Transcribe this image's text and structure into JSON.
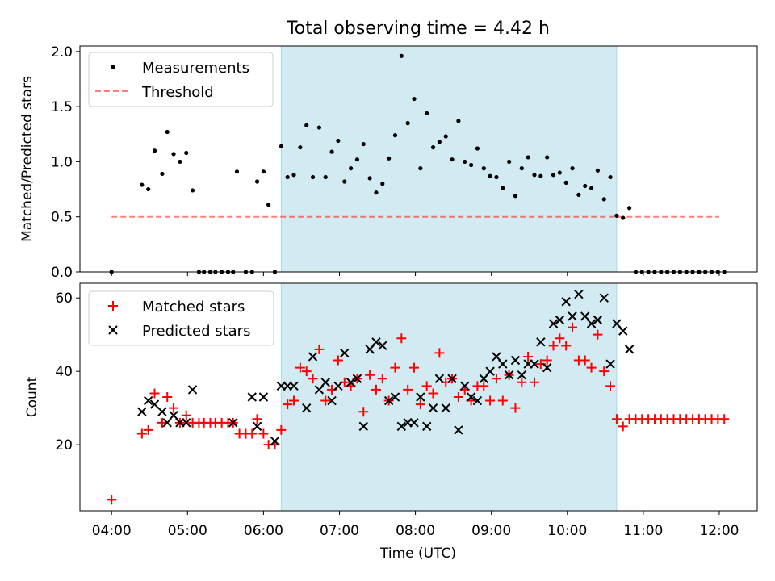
{
  "title": "Total observing time = 4.42 h",
  "colors": {
    "shade": "#add8e6",
    "measurement": "#000000",
    "threshold": "#ff0000",
    "matched": "#ff0000",
    "predicted": "#000000"
  },
  "chart_data": [
    {
      "type": "scatter",
      "ylabel": "Matched/Predicted stars",
      "ylim": [
        0,
        2.05
      ],
      "yticks": [
        0.0,
        0.5,
        1.0,
        1.5,
        2.0
      ],
      "ytick_labels": [
        "0.0",
        "0.5",
        "1.0",
        "1.5",
        "2.0"
      ],
      "shaded_span": [
        "06:14",
        "10:39"
      ],
      "legend": {
        "placement": "upper-left",
        "entries": [
          "Measurements",
          "Threshold"
        ]
      },
      "threshold": {
        "name": "Threshold",
        "y": 0.5,
        "x_range": [
          "04:00",
          "12:00"
        ],
        "style": "dashed"
      },
      "series": [
        {
          "name": "Measurements",
          "marker": "dot",
          "points": [
            [
              "04:00",
              0
            ],
            [
              "04:24",
              0.79
            ],
            [
              "04:29",
              0.75
            ],
            [
              "04:34",
              1.1
            ],
            [
              "04:40",
              0.89
            ],
            [
              "04:44",
              1.27
            ],
            [
              "04:49",
              1.07
            ],
            [
              "04:54",
              1.0
            ],
            [
              "04:59",
              1.08
            ],
            [
              "05:04",
              0.74
            ],
            [
              "05:09",
              0
            ],
            [
              "05:13",
              0
            ],
            [
              "05:18",
              0
            ],
            [
              "05:22",
              0
            ],
            [
              "05:27",
              0
            ],
            [
              "05:32",
              0
            ],
            [
              "05:36",
              0
            ],
            [
              "05:39",
              0.91
            ],
            [
              "05:46",
              0
            ],
            [
              "05:51",
              0
            ],
            [
              "05:55",
              0.82
            ],
            [
              "06:00",
              0.91
            ],
            [
              "06:04",
              0.61
            ],
            [
              "06:09",
              0
            ],
            [
              "06:14",
              1.14
            ],
            [
              "06:19",
              0.86
            ],
            [
              "06:24",
              0.88
            ],
            [
              "06:29",
              1.13
            ],
            [
              "06:34",
              1.33
            ],
            [
              "06:39",
              0.86
            ],
            [
              "06:44",
              1.31
            ],
            [
              "06:49",
              0.86
            ],
            [
              "06:54",
              1.09
            ],
            [
              "06:59",
              1.19
            ],
            [
              "07:04",
              0.82
            ],
            [
              "07:09",
              0.94
            ],
            [
              "07:14",
              1.02
            ],
            [
              "07:19",
              1.16
            ],
            [
              "07:24",
              0.85
            ],
            [
              "07:29",
              0.72
            ],
            [
              "07:34",
              0.8
            ],
            [
              "07:39",
              1.03
            ],
            [
              "07:44",
              1.24
            ],
            [
              "07:49",
              1.96
            ],
            [
              "07:54",
              1.35
            ],
            [
              "07:59",
              1.57
            ],
            [
              "08:04",
              0.94
            ],
            [
              "08:09",
              1.44
            ],
            [
              "08:14",
              1.13
            ],
            [
              "08:19",
              1.18
            ],
            [
              "08:24",
              1.23
            ],
            [
              "08:29",
              1.02
            ],
            [
              "08:34",
              1.37
            ],
            [
              "08:39",
              1.0
            ],
            [
              "08:44",
              0.97
            ],
            [
              "08:49",
              1.12
            ],
            [
              "08:54",
              0.94
            ],
            [
              "08:59",
              0.87
            ],
            [
              "09:04",
              0.86
            ],
            [
              "09:09",
              0.76
            ],
            [
              "09:14",
              1.0
            ],
            [
              "09:19",
              0.69
            ],
            [
              "09:24",
              0.94
            ],
            [
              "09:29",
              1.04
            ],
            [
              "09:34",
              0.88
            ],
            [
              "09:39",
              0.87
            ],
            [
              "09:44",
              1.04
            ],
            [
              "09:49",
              0.88
            ],
            [
              "09:54",
              0.9
            ],
            [
              "09:59",
              0.81
            ],
            [
              "10:04",
              0.94
            ],
            [
              "10:09",
              0.7
            ],
            [
              "10:14",
              0.78
            ],
            [
              "10:19",
              0.76
            ],
            [
              "10:24",
              0.92
            ],
            [
              "10:29",
              0.66
            ],
            [
              "10:34",
              0.86
            ],
            [
              "10:39",
              0.51
            ],
            [
              "10:44",
              0.49
            ],
            [
              "10:49",
              0.58
            ],
            [
              "10:54",
              0
            ],
            [
              "10:59",
              0
            ],
            [
              "11:04",
              0
            ],
            [
              "11:09",
              0
            ],
            [
              "11:14",
              0
            ],
            [
              "11:19",
              0
            ],
            [
              "11:24",
              0
            ],
            [
              "11:29",
              0
            ],
            [
              "11:34",
              0
            ],
            [
              "11:39",
              0
            ],
            [
              "11:44",
              0
            ],
            [
              "11:49",
              0
            ],
            [
              "11:54",
              0
            ],
            [
              "11:59",
              0
            ],
            [
              "12:04",
              0
            ]
          ]
        }
      ]
    },
    {
      "type": "scatter",
      "xlabel": "Time (UTC)",
      "ylabel": "Count",
      "xlim": [
        "03:35",
        "12:30"
      ],
      "xticks": [
        "04:00",
        "05:00",
        "06:00",
        "07:00",
        "08:00",
        "09:00",
        "10:00",
        "11:00",
        "12:00"
      ],
      "ylim": [
        2,
        64
      ],
      "yticks": [
        20,
        40,
        60
      ],
      "shaded_span": [
        "06:14",
        "10:39"
      ],
      "legend": {
        "placement": "upper-left",
        "entries": [
          "Matched stars",
          "Predicted stars"
        ]
      },
      "series": [
        {
          "name": "Matched stars",
          "marker": "plus",
          "points": [
            [
              "04:00",
              5
            ],
            [
              "04:24",
              23
            ],
            [
              "04:29",
              24
            ],
            [
              "04:34",
              34
            ],
            [
              "04:40",
              26
            ],
            [
              "04:44",
              33
            ],
            [
              "04:49",
              30
            ],
            [
              "04:54",
              26
            ],
            [
              "04:59",
              28
            ],
            [
              "05:04",
              26
            ],
            [
              "05:09",
              26
            ],
            [
              "05:13",
              26
            ],
            [
              "05:18",
              26
            ],
            [
              "05:22",
              26
            ],
            [
              "05:27",
              26
            ],
            [
              "05:32",
              26
            ],
            [
              "05:36",
              26
            ],
            [
              "05:41",
              23
            ],
            [
              "05:46",
              23
            ],
            [
              "05:51",
              23
            ],
            [
              "05:55",
              27
            ],
            [
              "06:00",
              23
            ],
            [
              "06:04",
              20
            ],
            [
              "06:09",
              20
            ],
            [
              "06:14",
              24
            ],
            [
              "06:19",
              31
            ],
            [
              "06:24",
              32
            ],
            [
              "06:29",
              41
            ],
            [
              "06:34",
              40
            ],
            [
              "06:39",
              38
            ],
            [
              "06:44",
              46
            ],
            [
              "06:49",
              32
            ],
            [
              "06:54",
              35
            ],
            [
              "06:59",
              43
            ],
            [
              "07:04",
              37
            ],
            [
              "07:09",
              36
            ],
            [
              "07:14",
              38
            ],
            [
              "07:19",
              29
            ],
            [
              "07:24",
              39
            ],
            [
              "07:29",
              35
            ],
            [
              "07:34",
              38
            ],
            [
              "07:39",
              32
            ],
            [
              "07:44",
              41
            ],
            [
              "07:49",
              49
            ],
            [
              "07:54",
              35
            ],
            [
              "07:59",
              41
            ],
            [
              "08:04",
              31
            ],
            [
              "08:09",
              36
            ],
            [
              "08:14",
              34
            ],
            [
              "08:19",
              45
            ],
            [
              "08:24",
              37
            ],
            [
              "08:29",
              38
            ],
            [
              "08:34",
              33
            ],
            [
              "08:39",
              35
            ],
            [
              "08:44",
              32
            ],
            [
              "08:49",
              36
            ],
            [
              "08:54",
              36
            ],
            [
              "08:59",
              32
            ],
            [
              "09:04",
              38
            ],
            [
              "09:09",
              32
            ],
            [
              "09:14",
              39
            ],
            [
              "09:19",
              30
            ],
            [
              "09:24",
              37
            ],
            [
              "09:29",
              44
            ],
            [
              "09:34",
              37
            ],
            [
              "09:39",
              42
            ],
            [
              "09:44",
              43
            ],
            [
              "09:49",
              47
            ],
            [
              "09:54",
              49
            ],
            [
              "09:59",
              47
            ],
            [
              "10:04",
              52
            ],
            [
              "10:09",
              43
            ],
            [
              "10:14",
              43
            ],
            [
              "10:19",
              41
            ],
            [
              "10:24",
              50
            ],
            [
              "10:29",
              40
            ],
            [
              "10:34",
              36
            ],
            [
              "10:39",
              27
            ],
            [
              "10:44",
              25
            ],
            [
              "10:49",
              27
            ],
            [
              "10:54",
              27
            ],
            [
              "10:59",
              27
            ],
            [
              "11:04",
              27
            ],
            [
              "11:09",
              27
            ],
            [
              "11:14",
              27
            ],
            [
              "11:19",
              27
            ],
            [
              "11:24",
              27
            ],
            [
              "11:29",
              27
            ],
            [
              "11:34",
              27
            ],
            [
              "11:39",
              27
            ],
            [
              "11:44",
              27
            ],
            [
              "11:49",
              27
            ],
            [
              "11:54",
              27
            ],
            [
              "11:59",
              27
            ],
            [
              "12:04",
              27
            ]
          ]
        },
        {
          "name": "Predicted stars",
          "marker": "x",
          "points": [
            [
              "04:24",
              29
            ],
            [
              "04:29",
              32
            ],
            [
              "04:34",
              31
            ],
            [
              "04:40",
              29
            ],
            [
              "04:44",
              26
            ],
            [
              "04:49",
              28
            ],
            [
              "04:54",
              26
            ],
            [
              "04:59",
              26
            ],
            [
              "05:04",
              35
            ],
            [
              "05:36",
              26
            ],
            [
              "05:51",
              33
            ],
            [
              "05:55",
              25
            ],
            [
              "06:00",
              33
            ],
            [
              "06:09",
              21
            ],
            [
              "06:14",
              36
            ],
            [
              "06:19",
              36
            ],
            [
              "06:24",
              36
            ],
            [
              "06:34",
              30
            ],
            [
              "06:39",
              44
            ],
            [
              "06:44",
              35
            ],
            [
              "06:49",
              37
            ],
            [
              "06:54",
              32
            ],
            [
              "06:59",
              36
            ],
            [
              "07:04",
              45
            ],
            [
              "07:09",
              37
            ],
            [
              "07:14",
              38
            ],
            [
              "07:19",
              25
            ],
            [
              "07:24",
              46
            ],
            [
              "07:29",
              48
            ],
            [
              "07:34",
              47
            ],
            [
              "07:39",
              32
            ],
            [
              "07:44",
              33
            ],
            [
              "07:49",
              25
            ],
            [
              "07:54",
              26
            ],
            [
              "07:59",
              26
            ],
            [
              "08:04",
              33
            ],
            [
              "08:09",
              25
            ],
            [
              "08:14",
              30
            ],
            [
              "08:19",
              38
            ],
            [
              "08:24",
              30
            ],
            [
              "08:29",
              38
            ],
            [
              "08:34",
              24
            ],
            [
              "08:39",
              36
            ],
            [
              "08:44",
              33
            ],
            [
              "08:49",
              32
            ],
            [
              "08:54",
              38
            ],
            [
              "08:59",
              40
            ],
            [
              "09:04",
              44
            ],
            [
              "09:09",
              42
            ],
            [
              "09:14",
              39
            ],
            [
              "09:19",
              43
            ],
            [
              "09:24",
              39
            ],
            [
              "09:29",
              42
            ],
            [
              "09:34",
              42
            ],
            [
              "09:39",
              48
            ],
            [
              "09:44",
              41
            ],
            [
              "09:49",
              53
            ],
            [
              "09:54",
              54
            ],
            [
              "09:59",
              59
            ],
            [
              "10:04",
              55
            ],
            [
              "10:09",
              61
            ],
            [
              "10:14",
              55
            ],
            [
              "10:19",
              53
            ],
            [
              "10:24",
              54
            ],
            [
              "10:29",
              60
            ],
            [
              "10:34",
              42
            ],
            [
              "10:39",
              53
            ],
            [
              "10:44",
              51
            ],
            [
              "10:49",
              46
            ]
          ]
        }
      ]
    }
  ]
}
